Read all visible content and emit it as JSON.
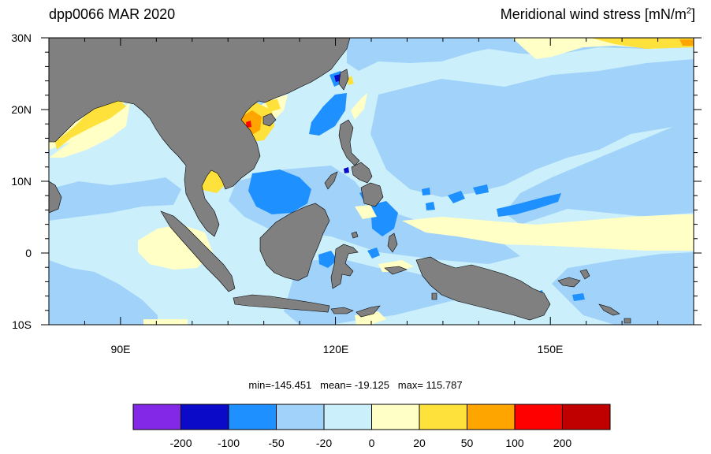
{
  "header": {
    "left_title": "dpp0066 MAR 2020",
    "right_title_text": "Meridional wind stress [mN/m",
    "right_title_sup": "2",
    "right_title_close": "]"
  },
  "map": {
    "lon_range": [
      80,
      170
    ],
    "lat_range": [
      -10,
      30
    ],
    "lat_labels": [
      "30N",
      "20N",
      "10N",
      "0",
      "10S"
    ],
    "lon_labels": [
      "90E",
      "120E",
      "150E"
    ],
    "land_color": "#808080",
    "ocean_base_color": "#ccf0fb"
  },
  "stats": {
    "text": "min=-145.451   mean= -19.125   max= 115.787"
  },
  "colorbar": {
    "colors": [
      "#8428e8",
      "#0a0ac8",
      "#1e90ff",
      "#a0d2fa",
      "#ccf0fb",
      "#ffffc6",
      "#ffe13c",
      "#ffa500",
      "#ff0000",
      "#c00000"
    ],
    "labels": [
      "-200",
      "-100",
      "-50",
      "-20",
      "0",
      "20",
      "50",
      "100",
      "200"
    ]
  }
}
